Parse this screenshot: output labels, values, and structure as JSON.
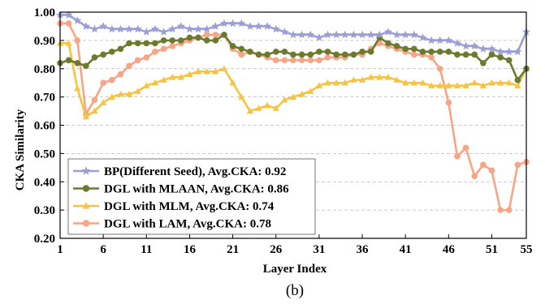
{
  "chart_data": {
    "type": "line",
    "xlabel": "Layer Index",
    "ylabel": "CKA Similarity",
    "caption": "(b)",
    "xlim": [
      1,
      55
    ],
    "ylim": [
      0.2,
      1.0
    ],
    "xticks": [
      1,
      6,
      11,
      16,
      21,
      26,
      31,
      36,
      41,
      46,
      51,
      55
    ],
    "yticks": [
      0.2,
      0.3,
      0.4,
      0.5,
      0.6,
      0.7,
      0.8,
      0.9,
      1.0
    ],
    "ytick_labels": [
      "0.20",
      "0.30",
      "0.40",
      "0.50",
      "0.60",
      "0.70",
      "0.80",
      "0.90",
      "1.00"
    ],
    "grid": "horizontal-dashed",
    "legend_position": "lower-left",
    "x": [
      1,
      2,
      3,
      4,
      5,
      6,
      7,
      8,
      9,
      10,
      11,
      12,
      13,
      14,
      15,
      16,
      17,
      18,
      19,
      20,
      21,
      22,
      23,
      24,
      25,
      26,
      27,
      28,
      29,
      30,
      31,
      32,
      33,
      34,
      35,
      36,
      37,
      38,
      39,
      40,
      41,
      42,
      43,
      44,
      45,
      46,
      47,
      48,
      49,
      50,
      51,
      52,
      53,
      54,
      55
    ],
    "series": [
      {
        "name": "BP(Different Seed), Avg.CKA: 0.92",
        "color": "#9b9fd6",
        "marker": "star",
        "values": [
          0.99,
          0.99,
          0.97,
          0.95,
          0.94,
          0.95,
          0.94,
          0.94,
          0.94,
          0.94,
          0.93,
          0.94,
          0.93,
          0.94,
          0.95,
          0.94,
          0.94,
          0.94,
          0.95,
          0.96,
          0.96,
          0.96,
          0.95,
          0.95,
          0.95,
          0.94,
          0.93,
          0.92,
          0.92,
          0.92,
          0.91,
          0.92,
          0.92,
          0.92,
          0.92,
          0.92,
          0.92,
          0.92,
          0.93,
          0.92,
          0.92,
          0.92,
          0.91,
          0.9,
          0.9,
          0.9,
          0.89,
          0.88,
          0.88,
          0.87,
          0.87,
          0.86,
          0.86,
          0.86,
          0.93
        ]
      },
      {
        "name": "DGL with MLAAN, Avg.CKA: 0.86",
        "color": "#6b7a2e",
        "marker": "circle",
        "values": [
          0.82,
          0.83,
          0.82,
          0.81,
          0.84,
          0.85,
          0.86,
          0.87,
          0.89,
          0.89,
          0.89,
          0.89,
          0.9,
          0.9,
          0.9,
          0.91,
          0.91,
          0.9,
          0.9,
          0.92,
          0.88,
          0.87,
          0.86,
          0.85,
          0.85,
          0.86,
          0.86,
          0.85,
          0.85,
          0.85,
          0.86,
          0.86,
          0.85,
          0.85,
          0.85,
          0.86,
          0.86,
          0.91,
          0.89,
          0.88,
          0.87,
          0.87,
          0.86,
          0.86,
          0.86,
          0.86,
          0.85,
          0.85,
          0.85,
          0.82,
          0.85,
          0.84,
          0.83,
          0.76,
          0.8
        ]
      },
      {
        "name": "DGL with MLM, Avg.CKA: 0.74",
        "color": "#f6c342",
        "marker": "triangle",
        "values": [
          0.89,
          0.89,
          0.73,
          0.63,
          0.65,
          0.68,
          0.7,
          0.71,
          0.71,
          0.72,
          0.74,
          0.75,
          0.76,
          0.77,
          0.77,
          0.78,
          0.79,
          0.79,
          0.79,
          0.8,
          0.75,
          0.7,
          0.65,
          0.66,
          0.67,
          0.66,
          0.69,
          0.7,
          0.71,
          0.72,
          0.74,
          0.75,
          0.75,
          0.75,
          0.76,
          0.76,
          0.77,
          0.77,
          0.77,
          0.76,
          0.75,
          0.75,
          0.75,
          0.74,
          0.74,
          0.74,
          0.74,
          0.74,
          0.75,
          0.74,
          0.75,
          0.75,
          0.75,
          0.74,
          0.8
        ]
      },
      {
        "name": "DGL with LAM, Avg.CKA: 0.78",
        "color": "#f7a585",
        "marker": "circle",
        "values": [
          0.96,
          0.96,
          0.9,
          0.64,
          0.69,
          0.75,
          0.76,
          0.78,
          0.81,
          0.83,
          0.84,
          0.86,
          0.87,
          0.88,
          0.89,
          0.9,
          0.91,
          0.92,
          0.92,
          0.92,
          0.87,
          0.85,
          0.86,
          0.85,
          0.84,
          0.83,
          0.83,
          0.83,
          0.83,
          0.83,
          0.83,
          0.84,
          0.84,
          0.84,
          0.85,
          0.85,
          0.87,
          0.89,
          0.88,
          0.87,
          0.86,
          0.85,
          0.85,
          0.84,
          0.8,
          0.68,
          0.49,
          0.52,
          0.42,
          0.46,
          0.44,
          0.3,
          0.3,
          0.46,
          0.47
        ]
      }
    ]
  }
}
